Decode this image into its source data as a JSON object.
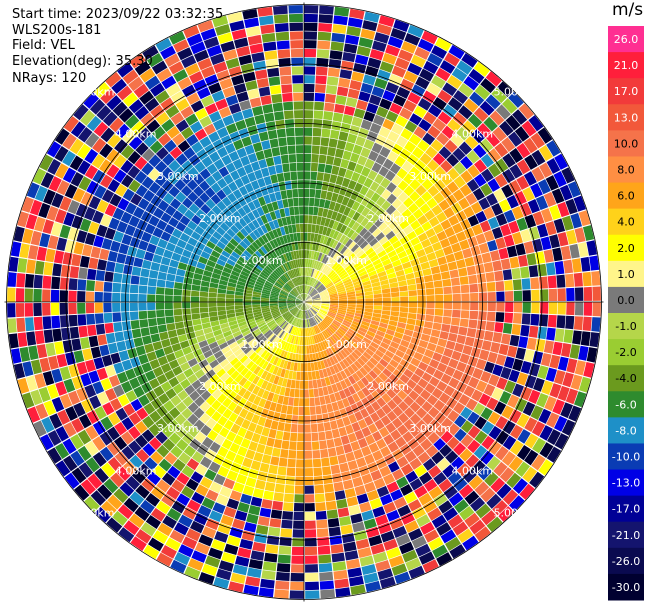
{
  "header": {
    "start_time": "Start time: 2023/09/22 03:32:35",
    "instrument": "WLS200s-181",
    "field": "Field: VEL",
    "elevation": "Elevation(deg): 35.30",
    "nrays": "NRays: 120"
  },
  "colorbar": {
    "title": "m/s",
    "entries": [
      {
        "label": "26.0",
        "color": "#ff2f92"
      },
      {
        "label": "21.0",
        "color": "#ff1f3b"
      },
      {
        "label": "17.0",
        "color": "#f23a3a"
      },
      {
        "label": "13.0",
        "color": "#f2583a"
      },
      {
        "label": "10.0",
        "color": "#f5734a"
      },
      {
        "label": "8.0",
        "color": "#ff8f43"
      },
      {
        "label": "6.0",
        "color": "#ffa51a"
      },
      {
        "label": "4.0",
        "color": "#ffd21a"
      },
      {
        "label": "2.0",
        "color": "#ffff00"
      },
      {
        "label": "1.0",
        "color": "#fff58a"
      },
      {
        "label": "0.0",
        "color": "#7a7a7a"
      },
      {
        "label": "-1.0",
        "color": "#b5d64a"
      },
      {
        "label": "-2.0",
        "color": "#9acd32"
      },
      {
        "label": "-4.0",
        "color": "#6b9a1e"
      },
      {
        "label": "-6.0",
        "color": "#2e8b2e"
      },
      {
        "label": "-8.0",
        "color": "#1e90c8"
      },
      {
        "label": "-10.0",
        "color": "#0a3cb4"
      },
      {
        "label": "-13.0",
        "color": "#0000e6"
      },
      {
        "label": "-17.0",
        "color": "#000096"
      },
      {
        "label": "-21.0",
        "color": "#14146e"
      },
      {
        "label": "-26.0",
        "color": "#0a0a50"
      },
      {
        "label": "-30.0",
        "color": "#000030"
      }
    ]
  },
  "chart_data": {
    "type": "ppi_radar",
    "title": "Start time: 2023/09/22 03:32:35",
    "field": "VEL",
    "units": "m/s",
    "elevation_deg": 35.3,
    "nrays": 120,
    "range_rings_km": [
      1.0,
      2.0,
      3.0,
      4.0,
      5.0
    ],
    "ring_labels": [
      "1.00km",
      "2.00km",
      "3.00km",
      "4.00km",
      "5.00km"
    ],
    "max_range_km": 5.0,
    "color_levels": [
      -30,
      -26,
      -21,
      -17,
      -13,
      -10,
      -8,
      -6,
      -4,
      -2,
      -1,
      0,
      1,
      2,
      4,
      6,
      8,
      10,
      13,
      17,
      21,
      26
    ],
    "noise_level_km": 3.35,
    "pattern": "Negative (approaching, green/blue) velocities to the west, positive (receding, orange/red) velocities to the east; zero-velocity grey band curving through center; random noise beyond ~3.4 km."
  }
}
